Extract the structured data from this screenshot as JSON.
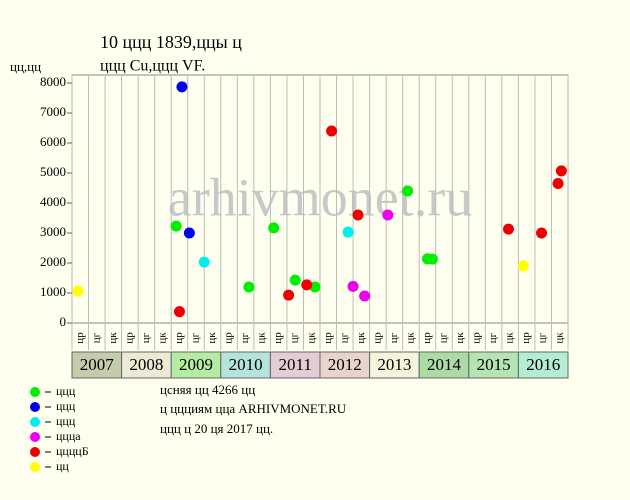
{
  "chart_data": {
    "type": "scatter",
    "title": "10 ццц 1839,ццы ц",
    "subtitle": "ццц Cu,ццц VF.",
    "y_label": "цц,цц",
    "watermark": "arhivmonet.ru",
    "xlim": [
      0,
      30
    ],
    "ylim": [
      0,
      8000
    ],
    "yticks": [
      0,
      1000,
      2000,
      3000,
      4000,
      5000,
      6000,
      7000,
      8000
    ],
    "years": [
      "2007",
      "2008",
      "2009",
      "2010",
      "2011",
      "2012",
      "2013",
      "2014",
      "2015",
      "2016"
    ],
    "year_colors": [
      "#c4ccac",
      "#ecead4",
      "#b4eca4",
      "#b4e4dc",
      "#e4ccd4",
      "#e8d4cc",
      "#f4f4dc",
      "#acdca4",
      "#b4e4b4",
      "#b4ecd4"
    ],
    "period_labels": [
      "цр",
      "цг",
      "цк"
    ],
    "series": [
      {
        "name": "ццц",
        "color": "#00ee00",
        "x": [
          6.3,
          10.7,
          12.2,
          13.5,
          14.7,
          20.3,
          21.5,
          21.8
        ],
        "values": [
          3230,
          1200,
          3170,
          1430,
          1200,
          4400,
          2140,
          2130
        ]
      },
      {
        "name": "ццц",
        "color": "#0000ee",
        "x": [
          6.65,
          7.1
        ],
        "values": [
          7870,
          3000
        ]
      },
      {
        "name": "ццц",
        "color": "#00eeee",
        "x": [
          8.0,
          16.7
        ],
        "values": [
          2030,
          3030
        ]
      },
      {
        "name": "ццца",
        "color": "#ee00ee",
        "x": [
          17.0,
          17.7,
          19.1
        ],
        "values": [
          1220,
          900,
          3600
        ]
      },
      {
        "name": "ццццБ",
        "color": "#ee0000",
        "x": [
          6.5,
          13.1,
          14.2,
          15.7,
          17.3,
          26.4,
          28.4,
          29.4,
          29.6
        ],
        "values": [
          380,
          930,
          1270,
          6400,
          3600,
          3130,
          3000,
          4650,
          5070
        ]
      },
      {
        "name": "цц",
        "color": "#ffff00",
        "x": [
          0.36,
          27.3
        ],
        "values": [
          1065,
          1900
        ]
      }
    ],
    "notes": [
      "цcняя цц 4266 цц",
      "ц ццциям цца ARHIVMONET.RU",
      "ццц ц 20 ця 2017 цц."
    ]
  }
}
